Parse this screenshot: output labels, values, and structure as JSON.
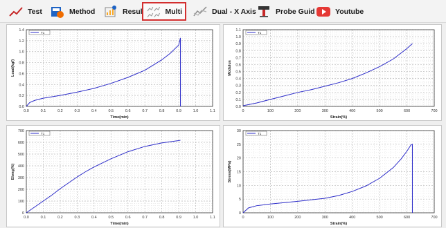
{
  "toolbar": {
    "buttons": [
      {
        "label": "Test",
        "icon": "trend-line-icon"
      },
      {
        "label": "Method",
        "icon": "method-icon"
      },
      {
        "label": "Result",
        "icon": "result-icon"
      },
      {
        "label": "Multi",
        "icon": "multi-chart-icon",
        "active": true
      },
      {
        "label": "Dual - X Axis",
        "icon": "dual-axis-icon"
      },
      {
        "label": "Probe Guid",
        "icon": "probe-guide-icon"
      },
      {
        "label": "Youtube",
        "icon": "youtube-icon"
      }
    ]
  },
  "colors": {
    "line": "#2a2ac8",
    "grid": "#b8b8b8",
    "axis": "#333333"
  },
  "chart_data": [
    {
      "type": "line",
      "legend": "T1",
      "xlabel": "Time(min)",
      "ylabel": "Load(kgf)",
      "xlim": [
        0,
        1.1
      ],
      "ylim": [
        0,
        1.4
      ],
      "xticks": [
        "0.0",
        "0.1",
        "0.2",
        "0.3",
        "0.4",
        "0.5",
        "0.6",
        "0.7",
        "0.8",
        "0.9",
        "1.0",
        "1.1"
      ],
      "yticks": [
        "0.0",
        "0.2",
        "0.4",
        "0.6",
        "0.8",
        "1.0",
        "1.2",
        "1.4"
      ],
      "series": [
        {
          "x": [
            0,
            0.02,
            0.05,
            0.1,
            0.2,
            0.3,
            0.4,
            0.5,
            0.6,
            0.7,
            0.8,
            0.85,
            0.9,
            0.91,
            0.91
          ],
          "y": [
            0,
            0.07,
            0.11,
            0.15,
            0.2,
            0.26,
            0.33,
            0.42,
            0.53,
            0.66,
            0.85,
            0.97,
            1.12,
            1.25,
            0
          ]
        }
      ]
    },
    {
      "type": "line",
      "legend": "T1",
      "xlabel": "Strain(%)",
      "ylabel": "Modulus",
      "xlim": [
        0,
        700
      ],
      "ylim": [
        0,
        1.1
      ],
      "xticks": [
        "0",
        "100",
        "200",
        "300",
        "400",
        "500",
        "600",
        "700"
      ],
      "yticks": [
        "0.0",
        "0.1",
        "0.2",
        "0.3",
        "0.4",
        "0.5",
        "0.6",
        "0.7",
        "0.8",
        "0.9",
        "1.0",
        "1.1"
      ],
      "series": [
        {
          "x": [
            0,
            50,
            100,
            150,
            200,
            250,
            300,
            350,
            400,
            450,
            500,
            550,
            600,
            620
          ],
          "y": [
            0.01,
            0.05,
            0.1,
            0.15,
            0.2,
            0.24,
            0.29,
            0.34,
            0.4,
            0.48,
            0.57,
            0.68,
            0.83,
            0.9
          ]
        }
      ]
    },
    {
      "type": "line",
      "legend": "T1",
      "xlabel": "Time(min)",
      "ylabel": "Elong(%)",
      "xlim": [
        0,
        1.1
      ],
      "ylim": [
        0,
        700
      ],
      "xticks": [
        "0.0",
        "0.1",
        "0.2",
        "0.3",
        "0.4",
        "0.5",
        "0.6",
        "0.7",
        "0.8",
        "0.9",
        "1.0",
        "1.1"
      ],
      "yticks": [
        "0",
        "100",
        "200",
        "300",
        "400",
        "500",
        "600",
        "700"
      ],
      "series": [
        {
          "x": [
            0,
            0.05,
            0.1,
            0.15,
            0.2,
            0.25,
            0.3,
            0.35,
            0.4,
            0.5,
            0.6,
            0.7,
            0.8,
            0.9,
            0.91
          ],
          "y": [
            0,
            50,
            100,
            150,
            205,
            255,
            305,
            350,
            390,
            460,
            520,
            565,
            595,
            615,
            618
          ]
        }
      ]
    },
    {
      "type": "line",
      "legend": "T1",
      "xlabel": "Strain(%)",
      "ylabel": "Stress(MPa)",
      "xlim": [
        0,
        700
      ],
      "ylim": [
        0,
        30
      ],
      "xticks": [
        "0",
        "100",
        "200",
        "300",
        "400",
        "500",
        "600",
        "700"
      ],
      "yticks": [
        "0",
        "5",
        "10",
        "15",
        "20",
        "25",
        "30"
      ],
      "series": [
        {
          "x": [
            0,
            20,
            50,
            100,
            200,
            300,
            350,
            400,
            450,
            500,
            550,
            580,
            600,
            615,
            620,
            620
          ],
          "y": [
            0,
            1.8,
            2.6,
            3.2,
            4.2,
            5.3,
            6.3,
            7.8,
            9.8,
            12.6,
            16.5,
            19.8,
            22.5,
            24.8,
            25,
            0
          ]
        }
      ]
    }
  ]
}
